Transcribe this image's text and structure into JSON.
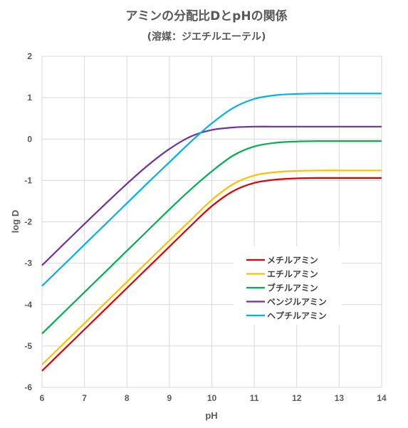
{
  "chart_data": {
    "type": "line",
    "title": "アミンの分配比Dとp​Hの関係",
    "subtitle": "(溶媒：ジエチルエーテル)",
    "xlabel": "pH",
    "ylabel": "log D",
    "xlim": [
      6,
      14
    ],
    "ylim": [
      -6,
      2
    ],
    "xticks": [
      "6",
      "7",
      "8",
      "9",
      "10",
      "11",
      "12",
      "13",
      "14"
    ],
    "yticks": [
      "2",
      "1",
      "0",
      "-1",
      "-2",
      "-3",
      "-4",
      "-5",
      "-6"
    ],
    "grid": true,
    "legend_position": "lower-right",
    "x": [
      6.0,
      6.5,
      7.0,
      7.5,
      8.0,
      8.5,
      9.0,
      9.5,
      10.0,
      10.5,
      11.0,
      11.5,
      12.0,
      12.5,
      13.0,
      13.5,
      14.0
    ],
    "series": [
      {
        "name": "メチルアミン",
        "color": "#e00000",
        "values": [
          -5.6,
          -5.1,
          -4.6,
          -4.1,
          -3.6,
          -3.1,
          -2.6,
          -2.1,
          -1.62,
          -1.26,
          -1.06,
          -0.98,
          -0.95,
          -0.94,
          -0.94,
          -0.94,
          -0.94
        ]
      },
      {
        "name": "エチルアミン",
        "color": "#ffc000",
        "values": [
          -5.45,
          -4.95,
          -4.45,
          -3.95,
          -3.45,
          -2.95,
          -2.45,
          -1.96,
          -1.47,
          -1.09,
          -0.88,
          -0.8,
          -0.77,
          -0.76,
          -0.76,
          -0.76,
          -0.76
        ]
      },
      {
        "name": "ブチルアミン",
        "color": "#00b050",
        "values": [
          -4.7,
          -4.2,
          -3.7,
          -3.2,
          -2.7,
          -2.2,
          -1.7,
          -1.22,
          -0.78,
          -0.4,
          -0.18,
          -0.09,
          -0.06,
          -0.05,
          -0.05,
          -0.05,
          -0.05
        ]
      },
      {
        "name": "ベンジルアミン",
        "color": "#7030a0",
        "values": [
          -3.05,
          -2.55,
          -2.05,
          -1.56,
          -1.08,
          -0.63,
          -0.24,
          0.06,
          0.22,
          0.28,
          0.3,
          0.3,
          0.3,
          0.3,
          0.3,
          0.3,
          0.3
        ]
      },
      {
        "name": "ヘプチルアミン",
        "color": "#00b0f0",
        "values": [
          -3.55,
          -3.05,
          -2.55,
          -2.05,
          -1.55,
          -1.05,
          -0.56,
          -0.07,
          0.38,
          0.75,
          0.97,
          1.06,
          1.09,
          1.1,
          1.1,
          1.1,
          1.1
        ]
      }
    ]
  }
}
